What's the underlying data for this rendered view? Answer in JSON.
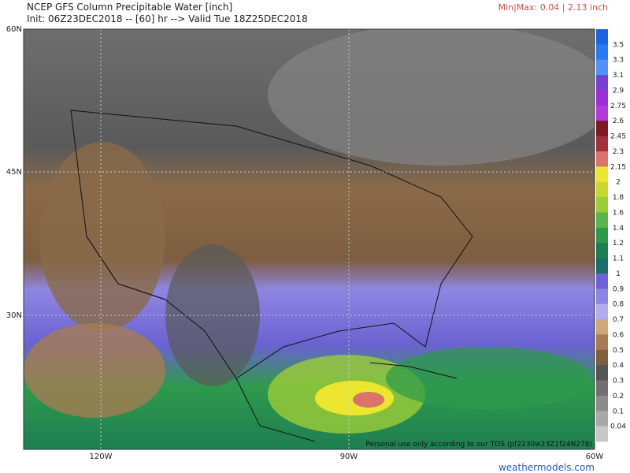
{
  "header": {
    "title": "NCEP GFS Column Precipitable Water [inch]",
    "subtitle": "Init: 06Z23DEC2018 -- [60] hr --> Valid Tue 18Z25DEC2018",
    "minmax": "Min|Max: 0.04 | 2.13 inch"
  },
  "map": {
    "lat_labels": [
      "60N",
      "45N",
      "30N"
    ],
    "lon_labels": [
      "120W",
      "90W",
      "60W"
    ],
    "notice": "Personal use only according to our TOS (pf2230w23Z1f24N278)",
    "credit": "weathermodels.com"
  },
  "colorbar": {
    "labels": [
      "3.5",
      "3.3",
      "3.1",
      "2.9",
      "2.75",
      "2.6",
      "2.45",
      "2.3",
      "2.15",
      "2",
      "1.8",
      "1.6",
      "1.4",
      "1.2",
      "1.1",
      "1",
      "0.9",
      "0.8",
      "0.7",
      "0.6",
      "0.5",
      "0.4",
      "0.3",
      "0.2",
      "0.1",
      "0.04"
    ],
    "colors": [
      "#1e63e0",
      "#2a7af0",
      "#5591f3",
      "#7a3fd0",
      "#9a2fd8",
      "#b23ad6",
      "#7a1a22",
      "#a0303a",
      "#d9736c",
      "#ece62e",
      "#c8d830",
      "#9ccc38",
      "#5ab54a",
      "#2c9a4a",
      "#1e7e52",
      "#1d6b6a",
      "#7060d8",
      "#8f86e2",
      "#b3adec",
      "#cfa878",
      "#a67c52",
      "#7f5f3f",
      "#555555",
      "#707070",
      "#8c8c8c",
      "#a8a8a8",
      "#c8c8c8"
    ]
  }
}
